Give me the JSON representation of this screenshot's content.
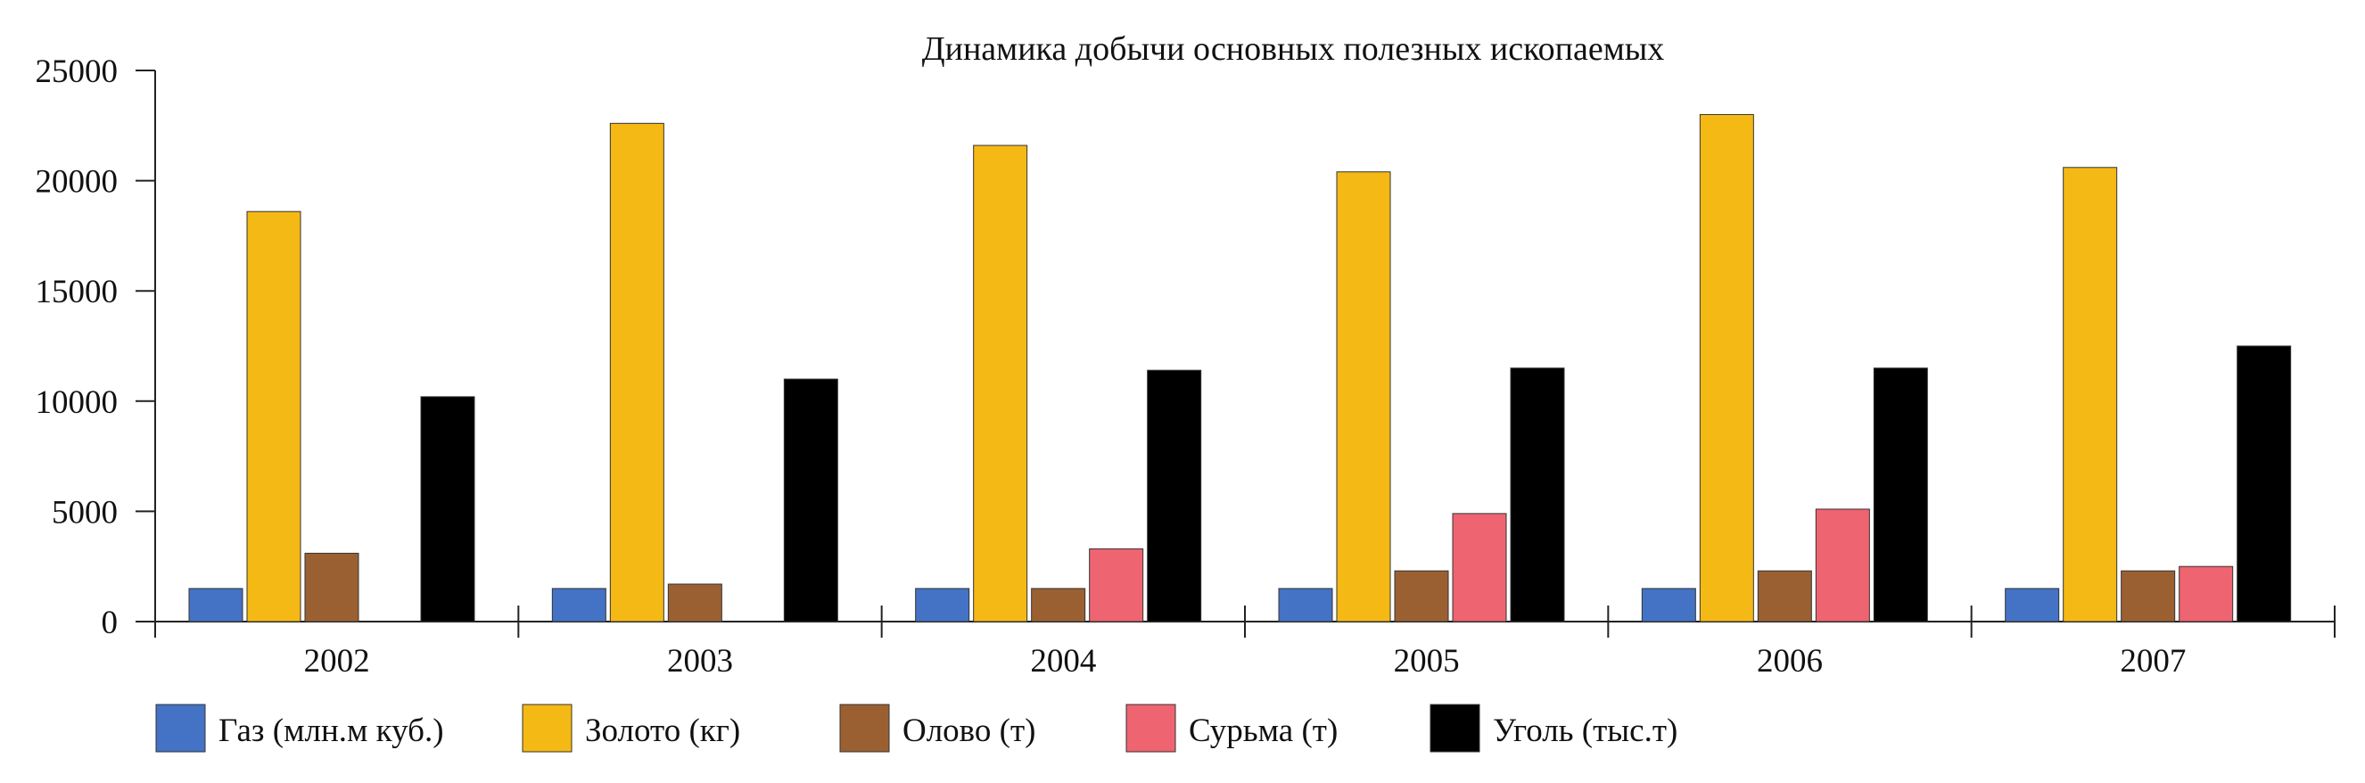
{
  "chart_data": {
    "type": "bar",
    "title": "Динамика добычи основных полезных ископаемых",
    "xlabel": "",
    "ylabel": "",
    "categories": [
      "2002",
      "2003",
      "2004",
      "2005",
      "2006",
      "2007"
    ],
    "ylim": [
      0,
      25000
    ],
    "yticks": [
      0,
      5000,
      10000,
      15000,
      20000,
      25000
    ],
    "grid": false,
    "legend_position": "bottom",
    "series": [
      {
        "name": "Газ (млн.м куб.)",
        "color": "#4472c4",
        "values": [
          1500,
          1500,
          1500,
          1500,
          1500,
          1500
        ]
      },
      {
        "name": "Золото (кг)",
        "color": "#f5b915",
        "values": [
          18600,
          22600,
          21600,
          20400,
          23000,
          20600
        ]
      },
      {
        "name": "Олово (т)",
        "color": "#9b6032",
        "values": [
          3100,
          1700,
          1500,
          2300,
          2300,
          2300
        ]
      },
      {
        "name": "Сурьма (т)",
        "color": "#ee6470",
        "values": [
          0,
          0,
          3300,
          4900,
          5100,
          2500
        ]
      },
      {
        "name": "Уголь (тыс.т)",
        "color": "#000000",
        "values": [
          10200,
          11000,
          11400,
          11500,
          11500,
          12500
        ]
      }
    ]
  }
}
